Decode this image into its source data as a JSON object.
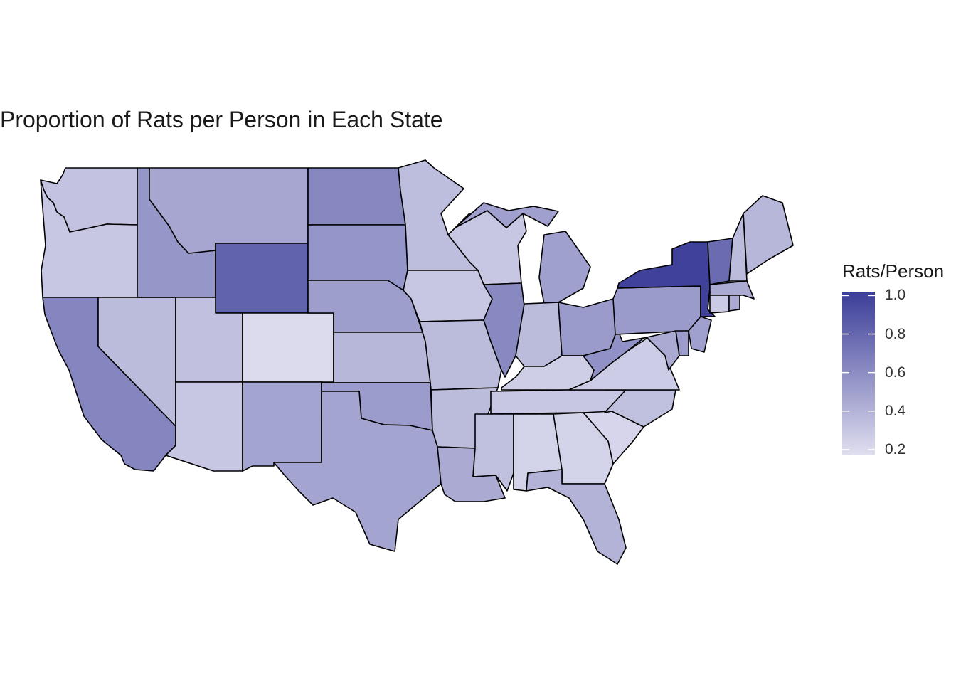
{
  "title": "Proportion of Rats per Person in Each State",
  "legend": {
    "title": "Rats/Person",
    "ticks": [
      "1.0",
      "0.8",
      "0.6",
      "0.4",
      "0.2"
    ],
    "tick_values": [
      1.0,
      0.8,
      0.6,
      0.4,
      0.2
    ],
    "range": [
      0.17,
      1.02
    ],
    "low_color": "#e0dff0",
    "high_color": "#3b3d98"
  },
  "chart_data": {
    "type": "heatmap",
    "kind": "choropleth",
    "variable": "Rats/Person",
    "states": [
      {
        "name": "Washington",
        "value": 0.32
      },
      {
        "name": "Oregon",
        "value": 0.3
      },
      {
        "name": "California",
        "value": 0.64
      },
      {
        "name": "Nevada",
        "value": 0.36
      },
      {
        "name": "Idaho",
        "value": 0.55
      },
      {
        "name": "Montana",
        "value": 0.47
      },
      {
        "name": "Wyoming",
        "value": 0.82
      },
      {
        "name": "Utah",
        "value": 0.33
      },
      {
        "name": "Arizona",
        "value": 0.3
      },
      {
        "name": "Colorado",
        "value": 0.19
      },
      {
        "name": "New Mexico",
        "value": 0.48
      },
      {
        "name": "North Dakota",
        "value": 0.63
      },
      {
        "name": "South Dakota",
        "value": 0.56
      },
      {
        "name": "Nebraska",
        "value": 0.51
      },
      {
        "name": "Kansas",
        "value": 0.38
      },
      {
        "name": "Oklahoma",
        "value": 0.52
      },
      {
        "name": "Texas",
        "value": 0.48
      },
      {
        "name": "Minnesota",
        "value": 0.35
      },
      {
        "name": "Iowa",
        "value": 0.3
      },
      {
        "name": "Missouri",
        "value": 0.36
      },
      {
        "name": "Arkansas",
        "value": 0.36
      },
      {
        "name": "Louisiana",
        "value": 0.45
      },
      {
        "name": "Wisconsin",
        "value": 0.3
      },
      {
        "name": "Illinois",
        "value": 0.62
      },
      {
        "name": "Michigan",
        "value": 0.5
      },
      {
        "name": "Indiana",
        "value": 0.36
      },
      {
        "name": "Ohio",
        "value": 0.53
      },
      {
        "name": "Kentucky",
        "value": 0.26
      },
      {
        "name": "Tennessee",
        "value": 0.3
      },
      {
        "name": "Mississippi",
        "value": 0.34
      },
      {
        "name": "Alabama",
        "value": 0.24
      },
      {
        "name": "Georgia",
        "value": 0.24
      },
      {
        "name": "Florida",
        "value": 0.4
      },
      {
        "name": "South Carolina",
        "value": 0.22
      },
      {
        "name": "North Carolina",
        "value": 0.34
      },
      {
        "name": "Virginia",
        "value": 0.27
      },
      {
        "name": "West Virginia",
        "value": 0.58
      },
      {
        "name": "Pennsylvania",
        "value": 0.53
      },
      {
        "name": "New York",
        "value": 1.0
      },
      {
        "name": "Vermont",
        "value": 0.78
      },
      {
        "name": "New Hampshire",
        "value": 0.36
      },
      {
        "name": "Maine",
        "value": 0.38
      },
      {
        "name": "Massachusetts",
        "value": 0.45
      },
      {
        "name": "Connecticut",
        "value": 0.28
      },
      {
        "name": "Rhode Island",
        "value": 0.45
      },
      {
        "name": "New Jersey",
        "value": 0.5
      },
      {
        "name": "Delaware",
        "value": 0.52
      },
      {
        "name": "Maryland",
        "value": 0.45
      }
    ]
  }
}
